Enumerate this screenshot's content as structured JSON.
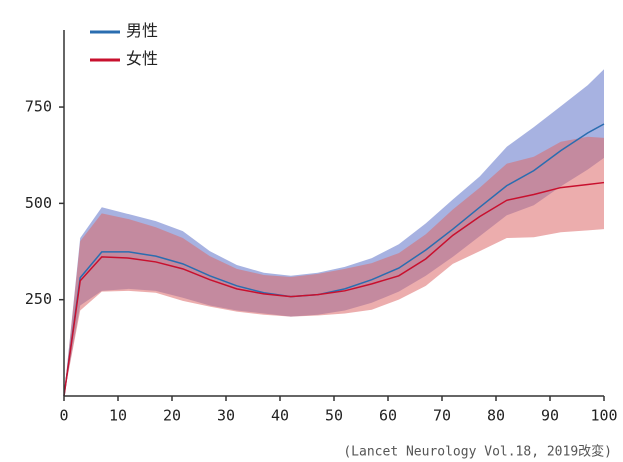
{
  "chart_data": {
    "type": "band-line",
    "x": [
      0,
      3,
      7,
      12,
      17,
      22,
      27,
      32,
      37,
      42,
      47,
      52,
      57,
      62,
      67,
      72,
      77,
      82,
      87,
      92,
      97,
      100
    ],
    "xlim": [
      0,
      100
    ],
    "xticks": [
      0,
      10,
      20,
      30,
      40,
      50,
      60,
      70,
      80,
      90,
      100
    ],
    "ylim": [
      0,
      950
    ],
    "yticks": [
      250,
      500,
      750
    ],
    "legend": "upper-left",
    "caption": "(Lancet Neurology Vol.18, 2019改変)",
    "series": [
      {
        "name": "男性",
        "color": "#2a6db0",
        "band_color": "rgba(95,115,200,0.55)",
        "values": [
          0,
          307,
          374,
          374,
          363,
          343,
          312,
          286,
          268,
          258,
          263,
          278,
          302,
          332,
          379,
          433,
          490,
          546,
          585,
          637,
          683,
          706
        ],
        "upper": [
          0,
          410,
          490,
          472,
          454,
          428,
          376,
          340,
          320,
          312,
          320,
          335,
          358,
          394,
          448,
          510,
          570,
          647,
          698,
          752,
          807,
          848
        ],
        "lower": [
          0,
          235,
          273,
          278,
          273,
          255,
          235,
          222,
          214,
          206,
          211,
          222,
          242,
          271,
          312,
          361,
          415,
          469,
          495,
          544,
          588,
          618
        ]
      },
      {
        "name": "女性",
        "color": "#c8102e",
        "band_color": "rgba(220,105,105,0.55)",
        "values": [
          0,
          299,
          361,
          358,
          348,
          330,
          302,
          278,
          265,
          258,
          263,
          273,
          291,
          312,
          356,
          417,
          466,
          508,
          523,
          541,
          549,
          554
        ],
        "upper": [
          0,
          402,
          474,
          459,
          438,
          410,
          363,
          330,
          314,
          309,
          317,
          330,
          345,
          371,
          420,
          484,
          541,
          603,
          621,
          660,
          673,
          670
        ],
        "lower": [
          0,
          222,
          271,
          273,
          268,
          247,
          232,
          219,
          211,
          206,
          209,
          214,
          224,
          250,
          286,
          343,
          376,
          410,
          412,
          425,
          430,
          433
        ]
      }
    ]
  }
}
